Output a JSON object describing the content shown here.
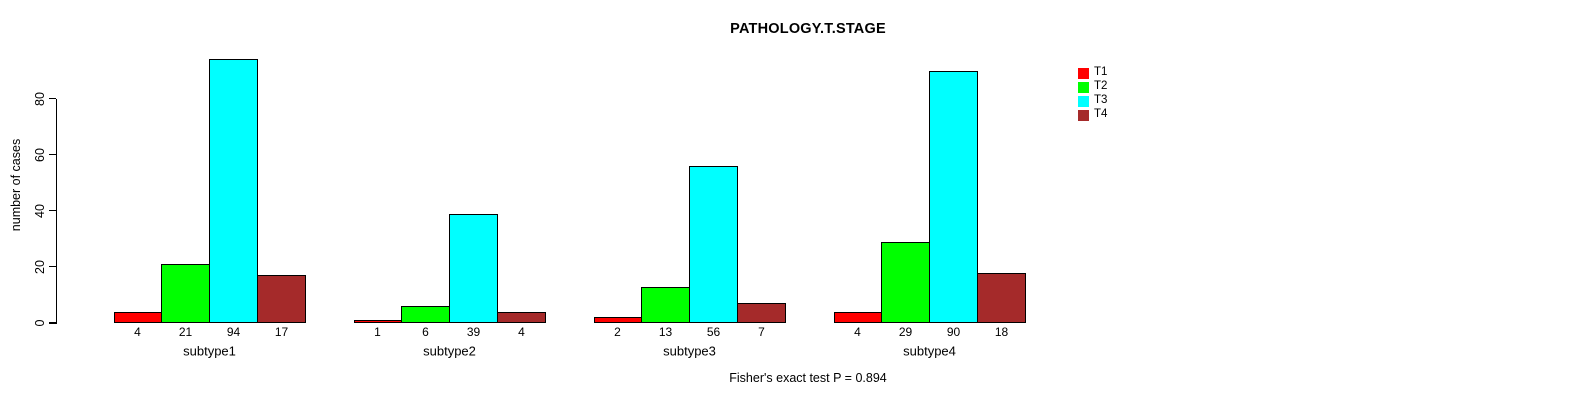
{
  "chart_data": {
    "type": "bar",
    "title": "PATHOLOGY.T.STAGE",
    "categories": [
      "subtype1",
      "subtype2",
      "subtype3",
      "subtype4"
    ],
    "series": [
      {
        "name": "T1",
        "color": "#ff0000",
        "values": [
          4,
          1,
          2,
          4
        ]
      },
      {
        "name": "T2",
        "color": "#00ff00",
        "values": [
          21,
          6,
          13,
          29
        ]
      },
      {
        "name": "T3",
        "color": "#00ffff",
        "values": [
          94,
          39,
          56,
          90
        ]
      },
      {
        "name": "T4",
        "color": "#a52a2a",
        "values": [
          17,
          4,
          7,
          18
        ]
      }
    ],
    "xlabel": "",
    "ylabel": "number of cases",
    "yticks": [
      0,
      20,
      40,
      60,
      80
    ],
    "ylim": [
      0,
      94
    ],
    "grid": false,
    "bar_value_labels_shown": true,
    "legend_position": "top-right",
    "legend_entries": [
      "T1",
      "T2",
      "T3",
      "T4"
    ],
    "annotation": "Fisher's exact test P = 0.894"
  }
}
